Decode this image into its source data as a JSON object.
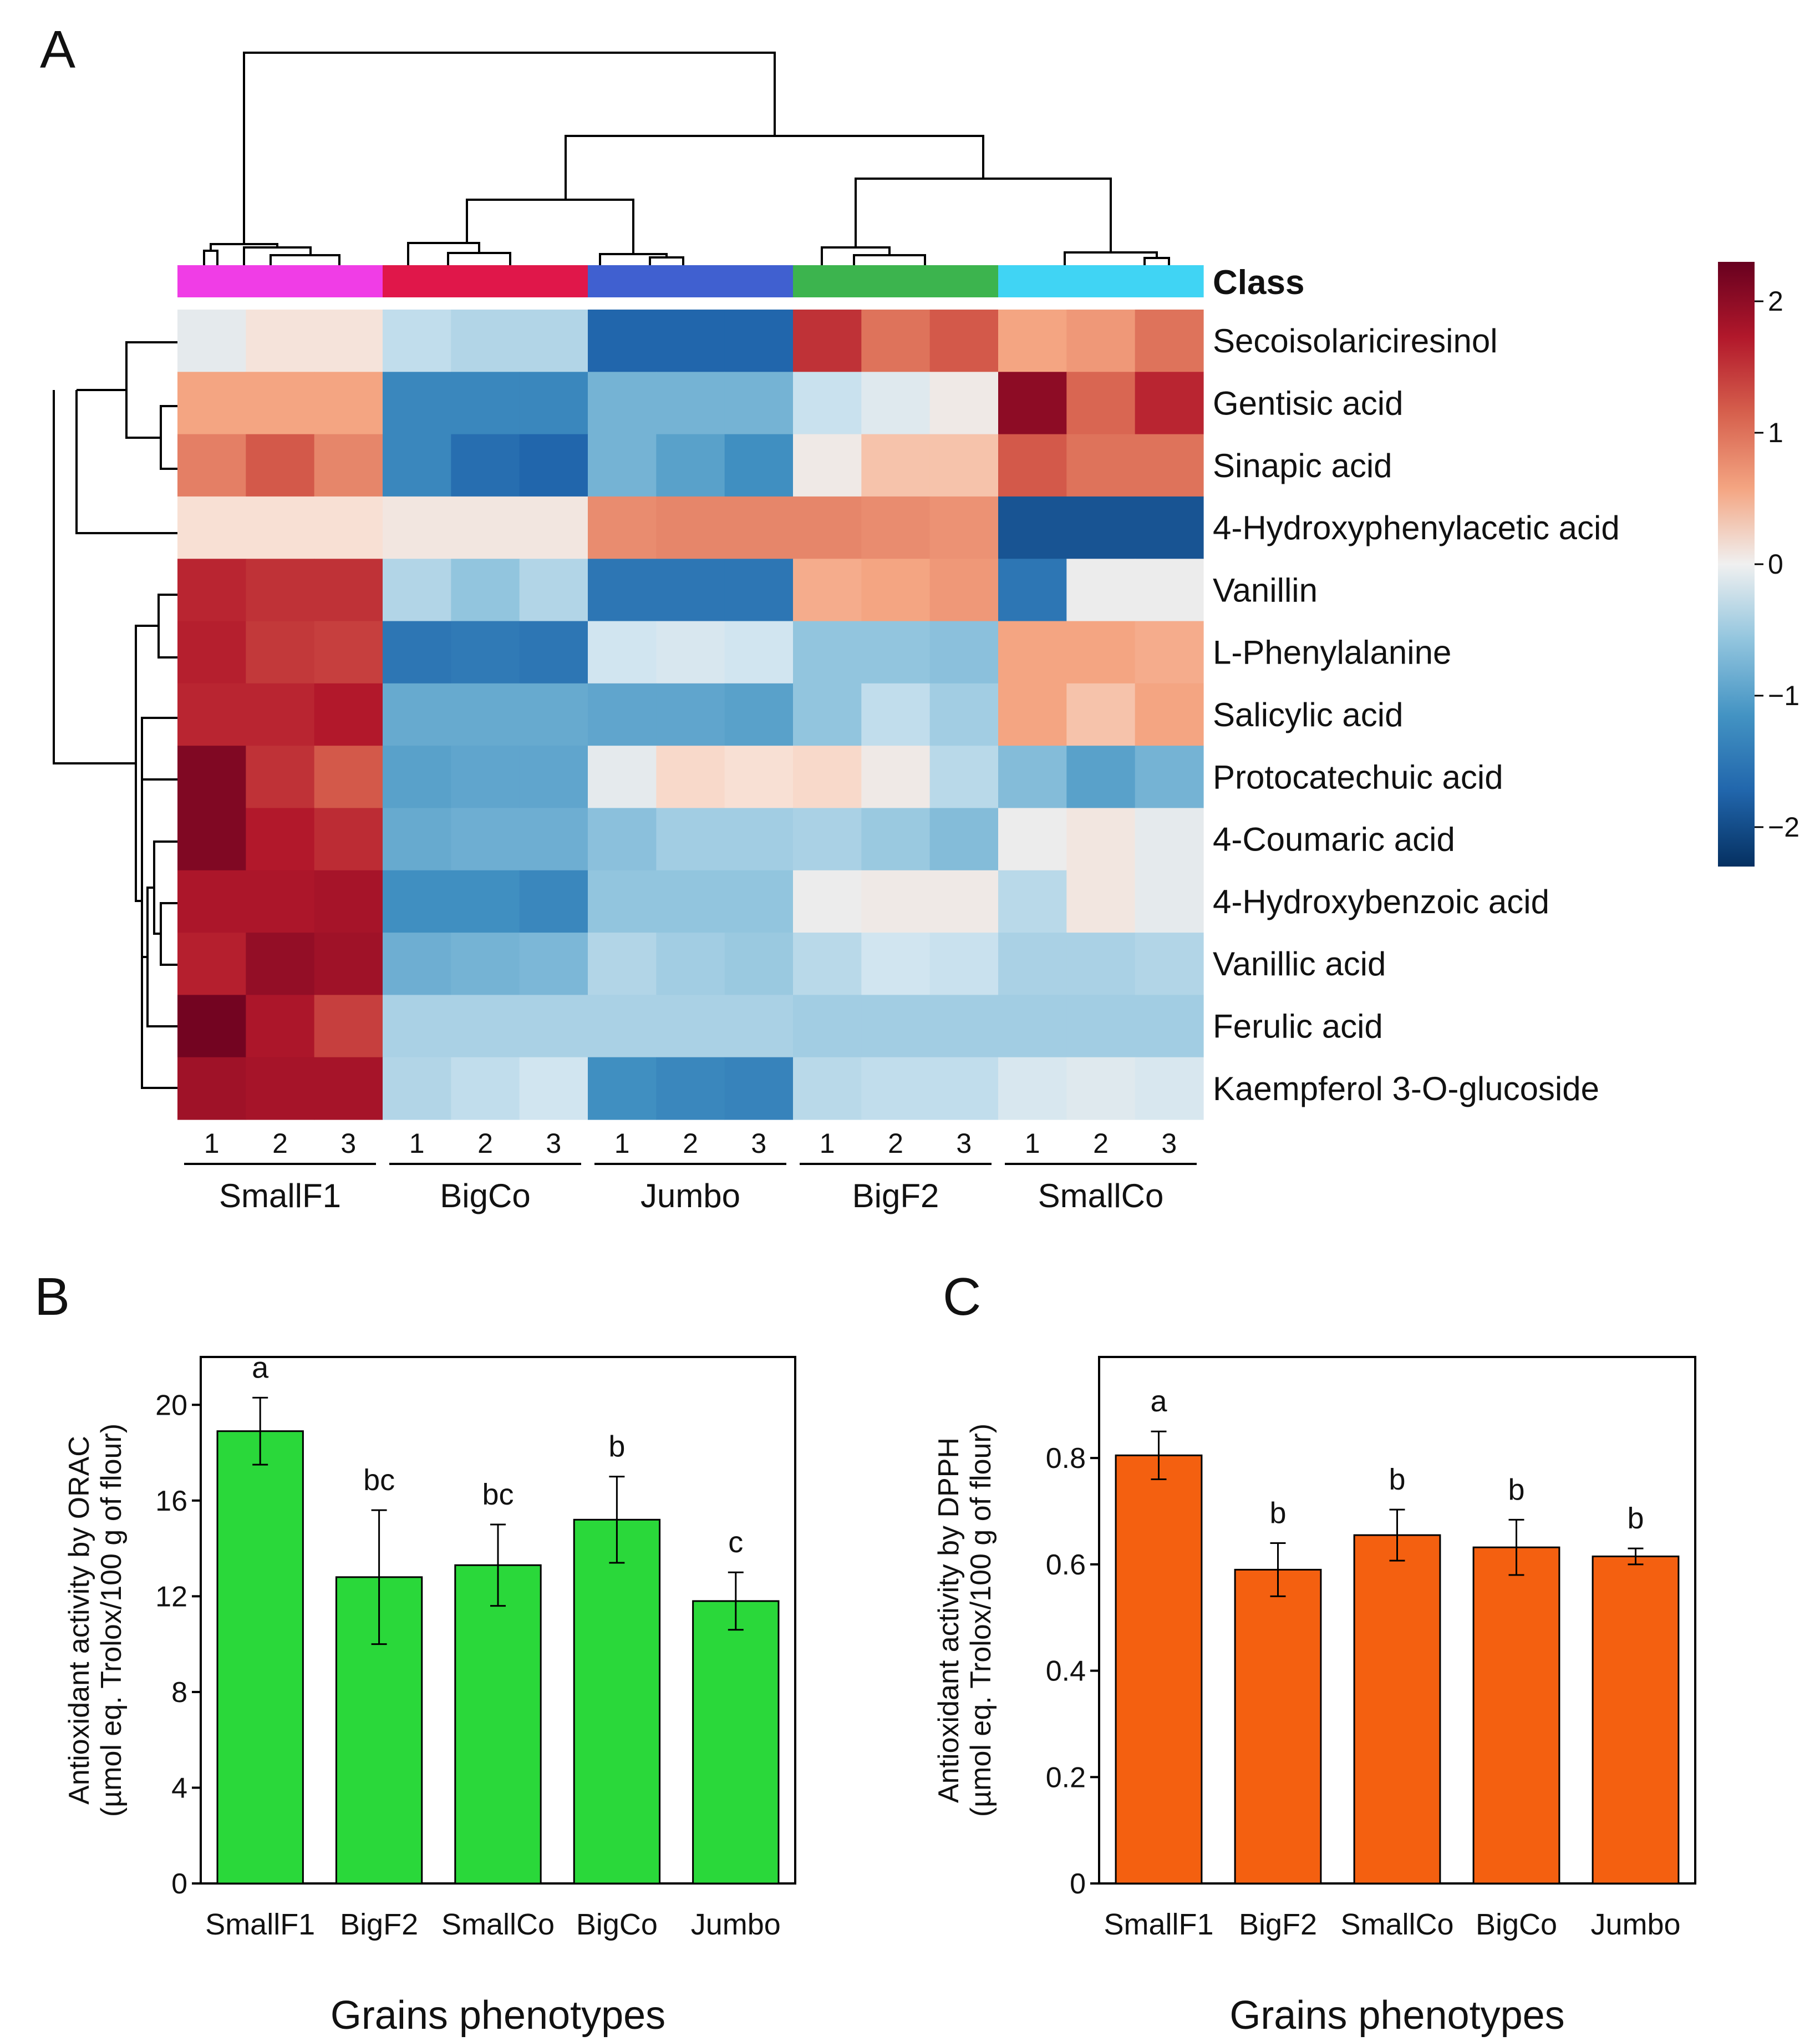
{
  "panels": {
    "a": "A",
    "b": "B",
    "c": "C"
  },
  "chart_data": [
    {
      "type": "heatmap",
      "panel": "A",
      "class_label": "Class",
      "groups": [
        "SmallF1",
        "BigCo",
        "Jumbo",
        "BigF2",
        "SmallCo"
      ],
      "group_colors": [
        "#f03de6",
        "#e0174a",
        "#4060d0",
        "#3cb44e",
        "#40d4f4"
      ],
      "replicates": [
        "1",
        "2",
        "3"
      ],
      "rows": [
        "Secoisolariciresinol",
        "Gentisic acid",
        "Sinapic acid",
        "4-Hydroxyphenylacetic acid",
        "Vanillin",
        "L-Phenylalanine",
        "Salicylic acid",
        "Protocatechuic acid",
        "4-Coumaric acid",
        "4-Hydroxybenzoic acid",
        "Vanillic acid",
        "Ferulic acid",
        "Kaempferol 3-O-glucoside"
      ],
      "values": [
        [
          -0.05,
          0.15,
          0.15,
          -0.3,
          -0.4,
          -0.4,
          -1.7,
          -1.7,
          -1.7,
          1.5,
          1.0,
          1.2,
          0.6,
          0.7,
          1.0
        ],
        [
          0.6,
          0.6,
          0.6,
          -1.3,
          -1.3,
          -1.3,
          -0.8,
          -0.8,
          -0.8,
          -0.25,
          -0.1,
          0.05,
          2.0,
          1.1,
          1.6
        ],
        [
          0.9,
          1.2,
          0.85,
          -1.3,
          -1.6,
          -1.7,
          -0.8,
          -1.0,
          -1.2,
          0.05,
          0.4,
          0.4,
          1.2,
          1.0,
          1.0
        ],
        [
          0.2,
          0.2,
          0.2,
          0.1,
          0.1,
          0.1,
          0.8,
          0.85,
          0.85,
          0.85,
          0.8,
          0.75,
          -1.9,
          -1.9,
          -1.9
        ],
        [
          1.6,
          1.5,
          1.5,
          -0.4,
          -0.6,
          -0.4,
          -1.5,
          -1.5,
          -1.5,
          0.55,
          0.6,
          0.7,
          -1.5,
          0.0,
          0.0
        ],
        [
          1.65,
          1.45,
          1.4,
          -1.5,
          -1.45,
          -1.5,
          -0.2,
          -0.15,
          -0.2,
          -0.6,
          -0.6,
          -0.65,
          0.6,
          0.6,
          0.55
        ],
        [
          1.6,
          1.6,
          1.7,
          -0.9,
          -0.9,
          -0.9,
          -0.95,
          -0.95,
          -1.0,
          -0.6,
          -0.3,
          -0.5,
          0.6,
          0.4,
          0.6
        ],
        [
          2.1,
          1.5,
          1.2,
          -1.0,
          -0.95,
          -0.95,
          -0.05,
          0.25,
          0.2,
          0.25,
          0.05,
          -0.35,
          -0.7,
          -1.0,
          -0.8
        ],
        [
          2.1,
          1.7,
          1.55,
          -0.9,
          -0.85,
          -0.85,
          -0.65,
          -0.5,
          -0.5,
          -0.45,
          -0.55,
          -0.7,
          0.0,
          0.1,
          -0.05
        ],
        [
          1.75,
          1.75,
          1.8,
          -1.2,
          -1.2,
          -1.3,
          -0.6,
          -0.6,
          -0.6,
          0.0,
          0.05,
          0.05,
          -0.35,
          0.1,
          -0.05
        ],
        [
          1.65,
          1.95,
          1.85,
          -0.85,
          -0.8,
          -0.75,
          -0.4,
          -0.5,
          -0.55,
          -0.35,
          -0.2,
          -0.25,
          -0.45,
          -0.45,
          -0.4
        ],
        [
          2.2,
          1.75,
          1.4,
          -0.45,
          -0.45,
          -0.45,
          -0.45,
          -0.45,
          -0.45,
          -0.5,
          -0.5,
          -0.5,
          -0.5,
          -0.5,
          -0.5
        ],
        [
          1.85,
          1.8,
          1.8,
          -0.4,
          -0.3,
          -0.2,
          -1.2,
          -1.3,
          -1.35,
          -0.35,
          -0.3,
          -0.3,
          -0.15,
          -0.1,
          -0.15
        ]
      ],
      "colorbar": {
        "ticks": [
          "2",
          "1",
          "0",
          "−1",
          "−2"
        ],
        "tick_values": [
          2,
          1,
          0,
          -1,
          -2
        ],
        "range": [
          -2.3,
          2.3
        ]
      }
    },
    {
      "type": "bar",
      "panel": "B",
      "categories": [
        "SmallF1",
        "BigF2",
        "SmallCo",
        "BigCo",
        "Jumbo"
      ],
      "values": [
        18.9,
        12.8,
        13.3,
        15.2,
        11.8
      ],
      "errors": [
        1.4,
        2.8,
        1.7,
        1.8,
        1.2
      ],
      "letters": [
        "a",
        "bc",
        "bc",
        "b",
        "c"
      ],
      "ylabel_line1": "Antioxidant activity by ORAC",
      "ylabel_line2": "(µmol eq. Trolox/100 g of flour)",
      "xlabel": "Grains phenotypes",
      "ylim": [
        0,
        22
      ],
      "yticks": [
        0,
        4,
        8,
        12,
        16,
        20
      ],
      "ytick_labels": [
        "0",
        "4",
        "8",
        "12",
        "16",
        "20"
      ],
      "bar_color": "#2ad83a"
    },
    {
      "type": "bar",
      "panel": "C",
      "categories": [
        "SmallF1",
        "BigF2",
        "SmallCo",
        "BigCo",
        "Jumbo"
      ],
      "values": [
        0.805,
        0.59,
        0.655,
        0.632,
        0.615
      ],
      "errors": [
        0.045,
        0.05,
        0.048,
        0.052,
        0.015
      ],
      "letters": [
        "a",
        "b",
        "b",
        "b",
        "b"
      ],
      "ylabel_line1": "Antioxidant activity by DPPH",
      "ylabel_line2": "(µmol eq. Trolox/100 g of flour)",
      "xlabel": "Grains phenotypes",
      "ylim": [
        0,
        0.99
      ],
      "yticks": [
        0,
        0.2,
        0.4,
        0.6,
        0.8
      ],
      "ytick_labels": [
        "0",
        "0.2",
        "0.4",
        "0.6",
        "0.8"
      ],
      "bar_color": "#f46010"
    }
  ]
}
